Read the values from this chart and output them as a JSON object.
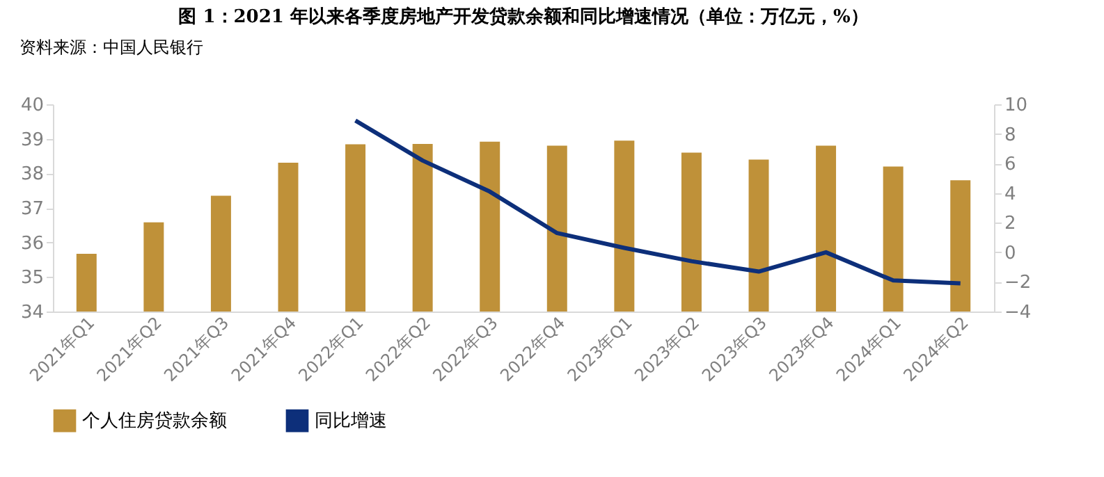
{
  "chart_data": {
    "type": "bar",
    "title": "图 1：2021 年以来各季度房地产开发贷款余额和同比增速情况（单位：万亿元，%）",
    "annotations": [
      "资料来源：中国人民银行"
    ],
    "categories": [
      "2021年Q1",
      "2021年Q2",
      "2021年Q3",
      "2021年Q4",
      "2022年Q1",
      "2022年Q2",
      "2022年Q3",
      "2022年Q4",
      "2023年Q1",
      "2023年Q2",
      "2023年Q3",
      "2023年Q4",
      "2024年Q1",
      "2024年Q2"
    ],
    "series": [
      {
        "name": "个人住房贷款余额",
        "color": "#bf9139",
        "values": [
          35.67,
          36.58,
          37.35,
          38.31,
          38.84,
          38.85,
          38.92,
          38.8,
          38.95,
          38.6,
          38.4,
          38.8,
          38.2,
          37.8
        ]
      },
      {
        "name": "同比增速",
        "type": "line",
        "axis": "y2",
        "color": "#0d2f7a",
        "values": [
          null,
          null,
          null,
          null,
          8.9,
          6.2,
          4.1,
          1.3,
          0.3,
          -0.6,
          -1.3,
          0.0,
          -1.9,
          -2.1
        ]
      }
    ],
    "ylim": [
      34,
      40
    ],
    "yticks": [
      34,
      35,
      36,
      37,
      38,
      39,
      40
    ],
    "y2lim": [
      -4,
      10
    ],
    "y2ticks": [
      -4,
      -2,
      0,
      2,
      4,
      6,
      8,
      10
    ],
    "grid": false,
    "legend": "bottom"
  }
}
